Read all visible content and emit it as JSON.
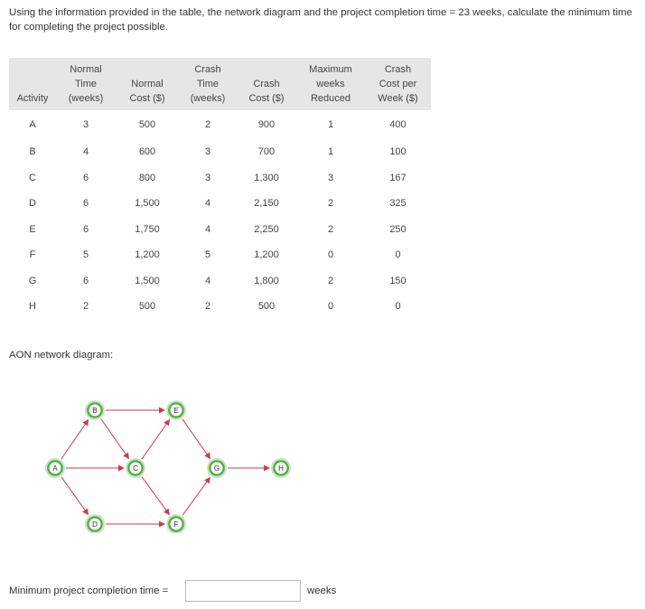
{
  "question": "Using the information provided in the table, the network diagram and the project completion time = 23 weeks, calculate the minimum time for completing the project possible.",
  "table": {
    "headers": [
      [
        "Activity"
      ],
      [
        "Normal",
        "Time",
        "(weeks)"
      ],
      [
        "Normal",
        "Cost ($)"
      ],
      [
        "Crash",
        "Time",
        "(weeks)"
      ],
      [
        "Crash",
        "Cost ($)"
      ],
      [
        "Maximum",
        "weeks",
        "Reduced"
      ],
      [
        "Crash",
        "Cost per",
        "Week ($)"
      ]
    ],
    "rows": [
      [
        "A",
        "3",
        "500",
        "2",
        "900",
        "1",
        "400"
      ],
      [
        "B",
        "4",
        "600",
        "3",
        "700",
        "1",
        "100"
      ],
      [
        "C",
        "6",
        "800",
        "3",
        "1,300",
        "3",
        "167"
      ],
      [
        "D",
        "6",
        "1,500",
        "4",
        "2,150",
        "2",
        "325"
      ],
      [
        "E",
        "6",
        "1,750",
        "4",
        "2,250",
        "2",
        "250"
      ],
      [
        "F",
        "5",
        "1,200",
        "5",
        "1,200",
        "0",
        "0"
      ],
      [
        "G",
        "6",
        "1,500",
        "4",
        "1,800",
        "2",
        "150"
      ],
      [
        "H",
        "2",
        "500",
        "2",
        "500",
        "0",
        "0"
      ]
    ]
  },
  "diagram": {
    "label": "AON network diagram:",
    "node_fill": "#54ab47",
    "node_border": "#c8e6c0",
    "arrow_color": "#cf3a4c",
    "nodes": [
      "A",
      "B",
      "C",
      "D",
      "E",
      "F",
      "G",
      "H"
    ],
    "edges": [
      [
        "A",
        "B"
      ],
      [
        "A",
        "C"
      ],
      [
        "A",
        "D"
      ],
      [
        "B",
        "E"
      ],
      [
        "B",
        "C"
      ],
      [
        "C",
        "E"
      ],
      [
        "C",
        "F"
      ],
      [
        "D",
        "F"
      ],
      [
        "E",
        "G"
      ],
      [
        "F",
        "G"
      ],
      [
        "G",
        "H"
      ]
    ]
  },
  "answer": {
    "label": "Minimum project completion time =",
    "value": "",
    "unit": "weeks"
  }
}
